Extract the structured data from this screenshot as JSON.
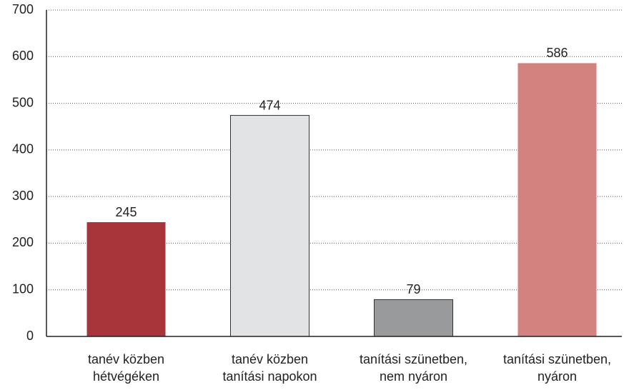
{
  "chart_data": {
    "type": "bar",
    "categories": [
      [
        "tanév közben",
        "hétvégéken"
      ],
      [
        "tanév közben",
        "tanítási napokon"
      ],
      [
        "tanítási szünetben,",
        "nem nyáron"
      ],
      [
        "tanítási szünetben,",
        "nyáron"
      ]
    ],
    "values": [
      245,
      474,
      79,
      586
    ],
    "colors": [
      "#a8353a",
      "#e2e3e5",
      "#999a9c",
      "#d4827f"
    ],
    "ylim": [
      0,
      700
    ],
    "yticks": [
      0,
      100,
      200,
      300,
      400,
      500,
      600,
      700
    ],
    "grid": true
  }
}
